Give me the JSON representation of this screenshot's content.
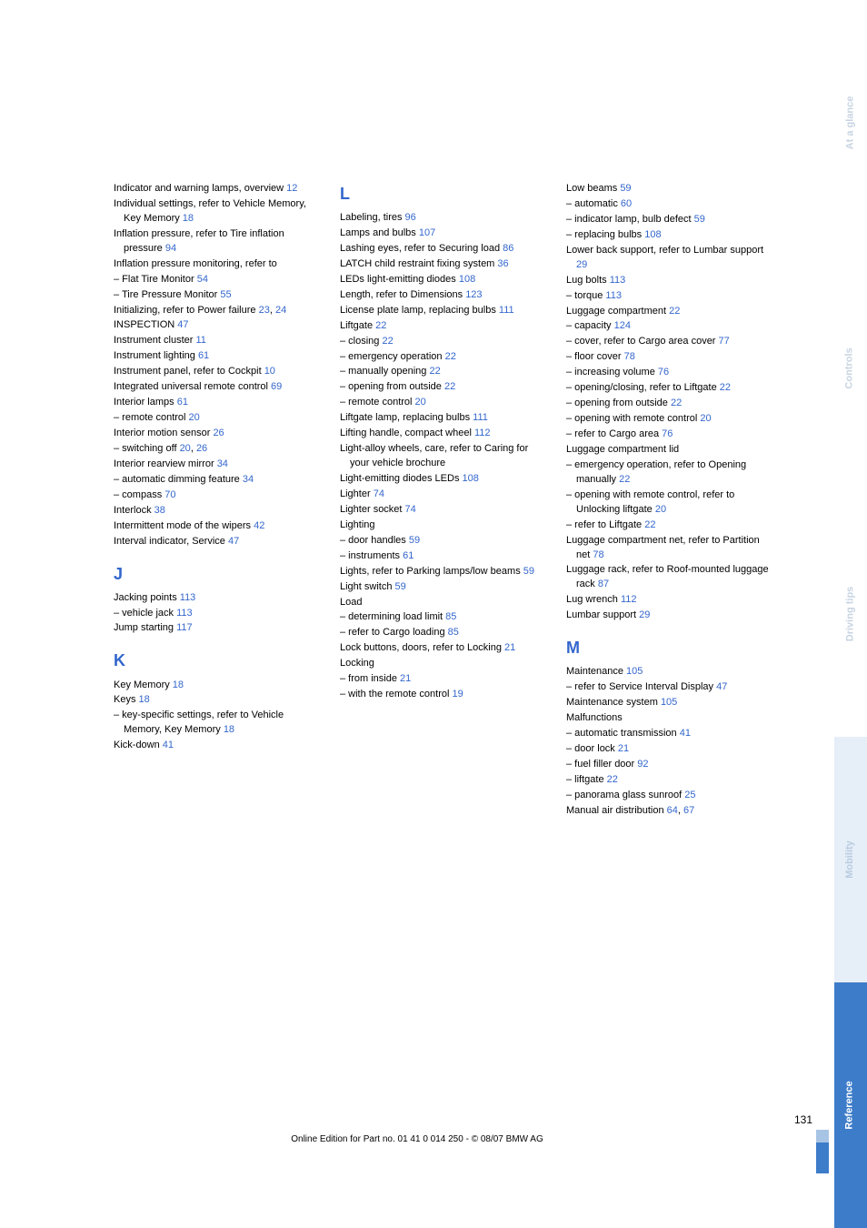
{
  "footer": "Online Edition for Part no. 01 41 0 014 250 - © 08/07 BMW AG",
  "pageNumber": "131",
  "tabs": [
    {
      "label": "At a glance",
      "class": "tab-plain"
    },
    {
      "label": "Controls",
      "class": "tab-plain"
    },
    {
      "label": "Driving tips",
      "class": "tab-plain"
    },
    {
      "label": "Mobility",
      "class": "tab-mob"
    },
    {
      "label": "Reference",
      "class": "tab-ref"
    }
  ],
  "columns": [
    {
      "items": [
        {
          "t": "Indicator and warning lamps, overview ",
          "p": "12"
        },
        {
          "t": "Individual settings, refer to Vehicle Memory, Key Memory ",
          "p": "18"
        },
        {
          "t": "Inflation pressure, refer to Tire inflation pressure ",
          "p": "94"
        },
        {
          "t": "Inflation pressure monitoring, refer to"
        },
        {
          "t": "– Flat Tire Monitor ",
          "p": "54"
        },
        {
          "t": "– Tire Pressure Monitor ",
          "p": "55"
        },
        {
          "t": "Initializing, refer to Power failure ",
          "p": "23",
          "p2": "24"
        },
        {
          "t": "INSPECTION ",
          "p": "47"
        },
        {
          "t": "Instrument cluster ",
          "p": "11"
        },
        {
          "t": "Instrument lighting ",
          "p": "61"
        },
        {
          "t": "Instrument panel, refer to Cockpit ",
          "p": "10"
        },
        {
          "t": "Integrated universal remote control ",
          "p": "69"
        },
        {
          "t": "Interior lamps ",
          "p": "61"
        },
        {
          "t": "– remote control ",
          "p": "20"
        },
        {
          "t": "Interior motion sensor ",
          "p": "26"
        },
        {
          "t": "– switching off ",
          "p": "20",
          "p2": "26"
        },
        {
          "t": "Interior rearview mirror ",
          "p": "34"
        },
        {
          "t": "– automatic dimming feature ",
          "p": "34"
        },
        {
          "t": "– compass ",
          "p": "70"
        },
        {
          "t": "Interlock ",
          "p": "38"
        },
        {
          "t": "Intermittent mode of the wipers ",
          "p": "42"
        },
        {
          "t": "Interval indicator, Service ",
          "p": "47"
        },
        {
          "letter": "J"
        },
        {
          "t": "Jacking points ",
          "p": "113"
        },
        {
          "t": "– vehicle jack ",
          "p": "113"
        },
        {
          "t": "Jump starting ",
          "p": "117"
        },
        {
          "letter": "K"
        },
        {
          "t": "Key Memory ",
          "p": "18"
        },
        {
          "t": "Keys ",
          "p": "18"
        },
        {
          "t": "– key-specific settings, refer to Vehicle Memory, Key Memory ",
          "p": "18"
        },
        {
          "t": "Kick-down ",
          "p": "41"
        }
      ]
    },
    {
      "items": [
        {
          "letter": "L",
          "first": true
        },
        {
          "t": "Labeling, tires ",
          "p": "96"
        },
        {
          "t": "Lamps and bulbs ",
          "p": "107"
        },
        {
          "t": "Lashing eyes, refer to Securing load ",
          "p": "86"
        },
        {
          "t": "LATCH child restraint fixing system ",
          "p": "36"
        },
        {
          "t": "LEDs light-emitting diodes ",
          "p": "108"
        },
        {
          "t": "Length, refer to Dimensions ",
          "p": "123"
        },
        {
          "t": "License plate lamp, replacing bulbs ",
          "p": "111"
        },
        {
          "t": "Liftgate ",
          "p": "22"
        },
        {
          "t": "– closing ",
          "p": "22"
        },
        {
          "t": "– emergency operation ",
          "p": "22"
        },
        {
          "t": "– manually opening ",
          "p": "22"
        },
        {
          "t": "– opening from outside ",
          "p": "22"
        },
        {
          "t": "– remote control ",
          "p": "20"
        },
        {
          "t": "Liftgate lamp, replacing bulbs ",
          "p": "111"
        },
        {
          "t": "Lifting handle, compact wheel ",
          "p": "112"
        },
        {
          "t": "Light-alloy wheels, care, refer to Caring for your vehicle brochure"
        },
        {
          "t": "Light-emitting diodes LEDs ",
          "p": "108"
        },
        {
          "t": "Lighter ",
          "p": "74"
        },
        {
          "t": "Lighter socket ",
          "p": "74"
        },
        {
          "t": "Lighting"
        },
        {
          "t": "– door handles ",
          "p": "59"
        },
        {
          "t": "– instruments ",
          "p": "61"
        },
        {
          "t": "Lights, refer to Parking lamps/low beams ",
          "p": "59"
        },
        {
          "t": "Light switch ",
          "p": "59"
        },
        {
          "t": "Load"
        },
        {
          "t": "– determining load limit ",
          "p": "85"
        },
        {
          "t": "– refer to Cargo loading ",
          "p": "85"
        },
        {
          "t": "Lock buttons, doors, refer to Locking ",
          "p": "21"
        },
        {
          "t": "Locking"
        },
        {
          "t": "– from inside ",
          "p": "21"
        },
        {
          "t": "– with the remote control ",
          "p": "19"
        }
      ]
    },
    {
      "items": [
        {
          "t": "Low beams ",
          "p": "59"
        },
        {
          "t": "– automatic ",
          "p": "60"
        },
        {
          "t": "– indicator lamp, bulb defect ",
          "p": "59"
        },
        {
          "t": "– replacing bulbs ",
          "p": "108"
        },
        {
          "t": "Lower back support, refer to Lumbar support ",
          "p": "29"
        },
        {
          "t": "Lug bolts ",
          "p": "113"
        },
        {
          "t": "– torque ",
          "p": "113"
        },
        {
          "t": "Luggage compartment ",
          "p": "22"
        },
        {
          "t": "– capacity ",
          "p": "124"
        },
        {
          "t": "– cover, refer to Cargo area cover ",
          "p": "77"
        },
        {
          "t": "– floor cover ",
          "p": "78"
        },
        {
          "t": "– increasing volume ",
          "p": "76"
        },
        {
          "t": "– opening/closing, refer to Liftgate ",
          "p": "22"
        },
        {
          "t": "– opening from outside ",
          "p": "22"
        },
        {
          "t": "– opening with remote control ",
          "p": "20"
        },
        {
          "t": "– refer to Cargo area ",
          "p": "76"
        },
        {
          "t": "Luggage compartment lid"
        },
        {
          "t": "– emergency operation, refer to Opening manually ",
          "p": "22"
        },
        {
          "t": "– opening with remote control, refer to Unlocking liftgate ",
          "p": "20"
        },
        {
          "t": "– refer to Liftgate ",
          "p": "22"
        },
        {
          "t": "Luggage compartment net, refer to Partition net ",
          "p": "78"
        },
        {
          "t": "Luggage rack, refer to Roof-mounted luggage rack ",
          "p": "87"
        },
        {
          "t": "Lug wrench ",
          "p": "112"
        },
        {
          "t": "Lumbar support ",
          "p": "29"
        },
        {
          "letter": "M"
        },
        {
          "t": "Maintenance ",
          "p": "105"
        },
        {
          "t": "– refer to Service Interval Display ",
          "p": "47"
        },
        {
          "t": "Maintenance system ",
          "p": "105"
        },
        {
          "t": "Malfunctions"
        },
        {
          "t": "– automatic transmission ",
          "p": "41"
        },
        {
          "t": "– door lock ",
          "p": "21"
        },
        {
          "t": "– fuel filler door ",
          "p": "92"
        },
        {
          "t": "– liftgate ",
          "p": "22"
        },
        {
          "t": "– panorama glass sunroof ",
          "p": "25"
        },
        {
          "t": "Manual air distribution ",
          "p": "64",
          "p2": "67"
        }
      ]
    }
  ]
}
